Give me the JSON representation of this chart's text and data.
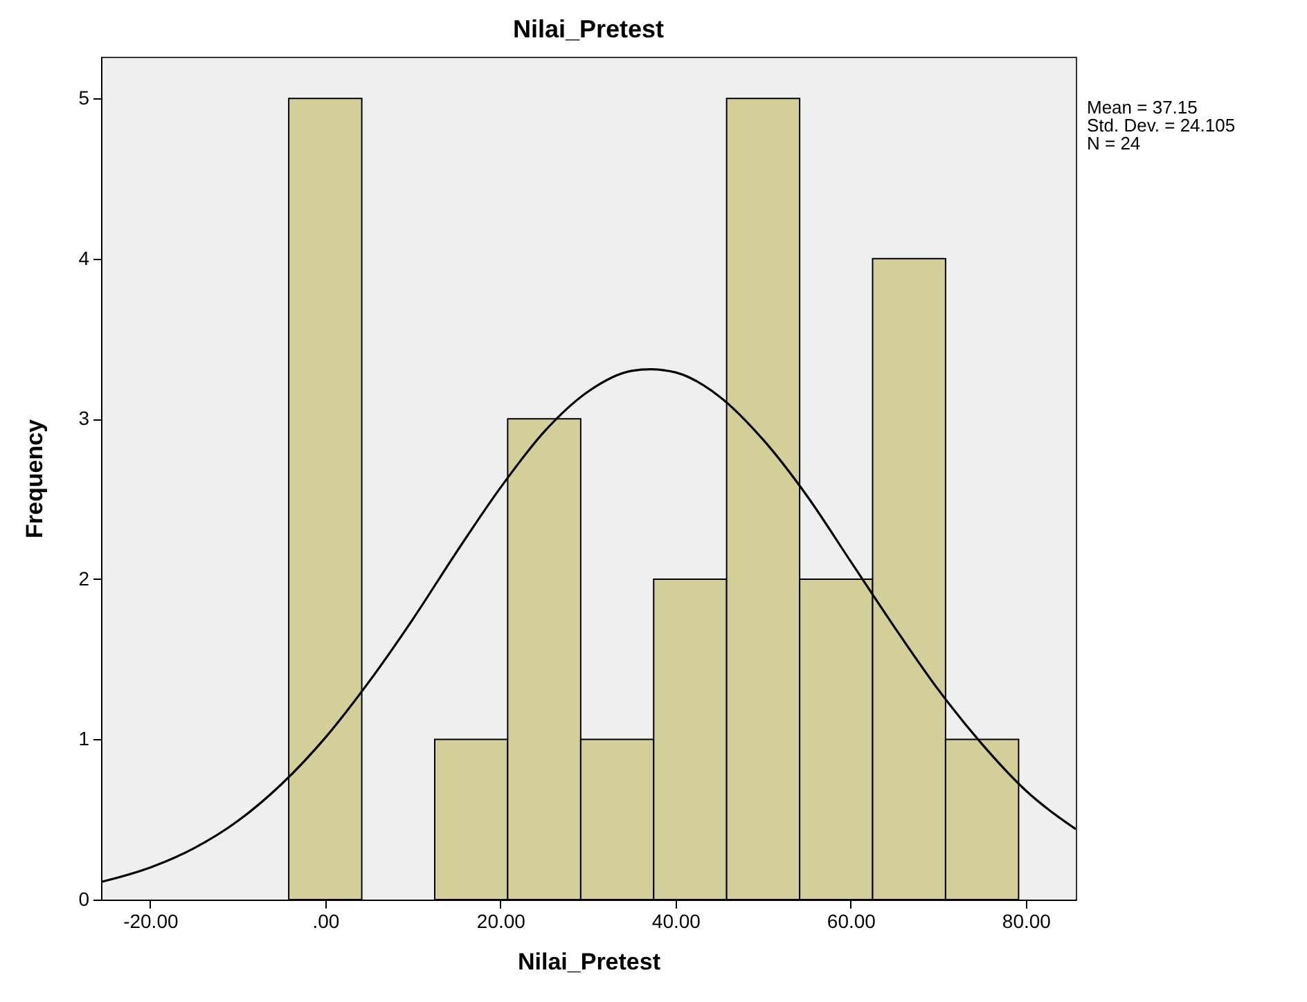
{
  "chart_data": {
    "type": "histogram",
    "title": "Nilai_Pretest",
    "xlabel": "Nilai_Pretest",
    "ylabel": "Frequency",
    "annotations": [
      "Mean = 37.15",
      "Std. Dev. = 24.105",
      "N = 24"
    ],
    "series": [
      {
        "color": "#d3cf98",
        "bins": [
          -4.17,
          4.17,
          12.5,
          20.83,
          29.17,
          37.5,
          45.83,
          54.17,
          62.5,
          70.83,
          79.17
        ],
        "values": [
          5,
          0,
          1,
          3,
          1,
          2,
          5,
          2,
          4,
          1
        ]
      },
      {
        "type": "line",
        "color": "#000000",
        "x": [
          -25.6,
          -20,
          -15,
          -10,
          -5,
          0,
          5,
          10,
          15,
          20,
          25,
          30,
          35,
          37.15,
          40,
          45,
          50,
          55,
          60,
          65,
          70,
          75,
          80,
          85.7
        ],
        "values": [
          0.11,
          0.2,
          0.32,
          0.49,
          0.72,
          1.01,
          1.36,
          1.75,
          2.17,
          2.57,
          2.92,
          3.17,
          3.3,
          3.31,
          3.29,
          3.14,
          2.87,
          2.52,
          2.11,
          1.7,
          1.31,
          0.97,
          0.68,
          0.44
        ]
      }
    ],
    "xlim": [
      -25.6,
      85.7
    ],
    "xticks": [
      {
        "value": -20,
        "label": "-20.00"
      },
      {
        "value": 0,
        "label": ".00"
      },
      {
        "value": 20,
        "label": "20.00"
      },
      {
        "value": 40,
        "label": "40.00"
      },
      {
        "value": 60,
        "label": "60.00"
      },
      {
        "value": 80,
        "label": "80.00"
      }
    ],
    "ylim": [
      0,
      5.26
    ],
    "yticks": [
      0,
      1,
      2,
      3,
      4,
      5
    ],
    "grid": false
  }
}
